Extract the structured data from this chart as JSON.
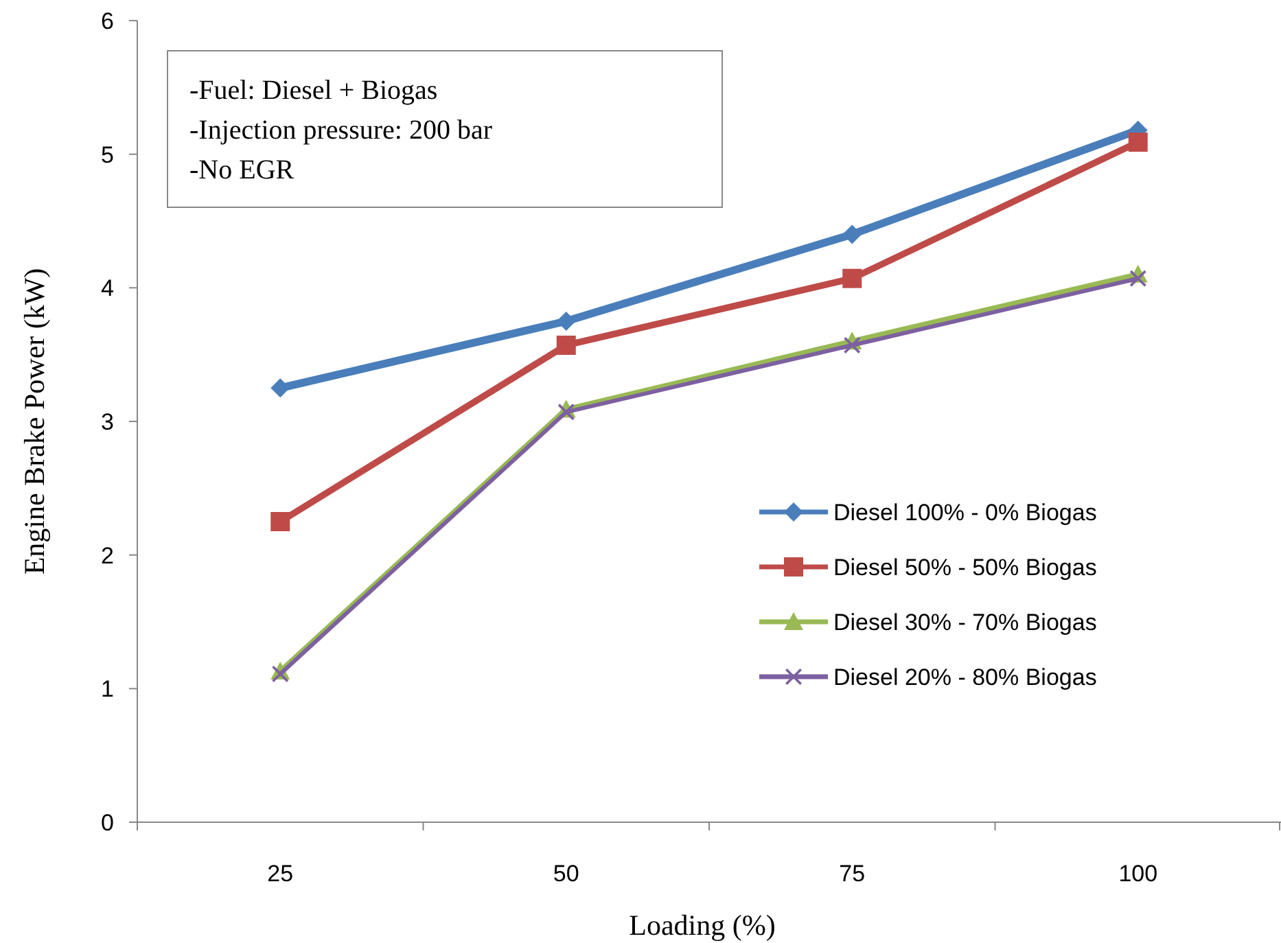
{
  "chart_data": {
    "type": "line",
    "xlabel": "Loading (%)",
    "ylabel": "Engine Brake Power (kW)",
    "categories": [
      "25",
      "50",
      "75",
      "100"
    ],
    "ylim": [
      0,
      6
    ],
    "yticks": [
      0,
      1,
      2,
      3,
      4,
      5,
      6
    ],
    "grid": false,
    "legend": "right",
    "line_style": "solid",
    "annotations": [
      "-Fuel: Diesel + Biogas",
      "-Injection pressure: 200 bar",
      "-No EGR"
    ],
    "series": [
      {
        "name": "Diesel 100% - 0% Biogas",
        "color": "#4a7ebb",
        "marker": "diamond",
        "values": [
          3.25,
          3.75,
          4.4,
          5.18
        ]
      },
      {
        "name": "Diesel 50% - 50% Biogas",
        "color": "#be4b48",
        "marker": "square",
        "values": [
          2.25,
          3.57,
          4.07,
          5.09
        ]
      },
      {
        "name": "Diesel 30% - 70% Biogas",
        "color": "#98b954",
        "marker": "triangle",
        "values": [
          1.13,
          3.09,
          3.6,
          4.1
        ]
      },
      {
        "name": "Diesel 20% - 80% Biogas",
        "color": "#7d60a0",
        "marker": "cross",
        "values": [
          1.11,
          3.07,
          3.57,
          4.07
        ]
      }
    ]
  }
}
